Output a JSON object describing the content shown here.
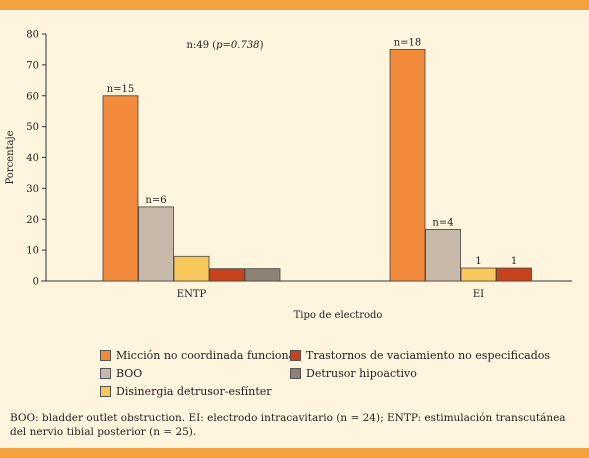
{
  "chart_data": {
    "type": "bar",
    "categories": [
      "ENTP",
      "EI"
    ],
    "series": [
      {
        "name": "Micción no coordinada funcional",
        "color": "#f28a3c",
        "values": [
          60,
          75
        ],
        "labels": [
          "n=15",
          "n=18"
        ]
      },
      {
        "name": "BOO",
        "color": "#c6b9aa",
        "values": [
          24,
          16.7
        ],
        "labels": [
          "n=6",
          "n=4"
        ]
      },
      {
        "name": "Disinergia detrusor-esfínter",
        "color": "#f8c85c",
        "values": [
          8,
          4.2
        ],
        "labels": [
          "",
          "1"
        ]
      },
      {
        "name": "Trastornos de vaciamiento no especificados",
        "color": "#c8421c",
        "values": [
          4,
          4.2
        ],
        "labels": [
          "",
          "1"
        ]
      },
      {
        "name": "Detrusor hipoactivo",
        "color": "#8e8274",
        "values": [
          4,
          0
        ],
        "labels": [
          "",
          ""
        ]
      }
    ],
    "ylabel": "Porcentaje",
    "xlabel": "Tipo de electrodo",
    "ylim": [
      0,
      80
    ],
    "yticks": [
      0,
      10,
      20,
      30,
      40,
      50,
      60,
      70,
      80
    ],
    "annotation_prefix": "n:49 (",
    "annotation_p": "p=0.738",
    "annotation_suffix": ")",
    "grid": false,
    "legend_placement": "bottom"
  },
  "legend": {
    "items": [
      {
        "label": "Micción no coordinada funcional",
        "color": "#f28a3c"
      },
      {
        "label": "Trastornos de vaciamiento no especificados",
        "color": "#c8421c"
      },
      {
        "label": "BOO",
        "color": "#c6b9aa"
      },
      {
        "label": "Detrusor hipoactivo",
        "color": "#8e8274"
      },
      {
        "label": "Disinergia detrusor-esfínter",
        "color": "#f8c85c"
      }
    ]
  },
  "footnote": {
    "line1": "BOO: bladder outlet obstruction. EI: electrodo intracavitario (n = 24); ENTP: estimulación transcutánea",
    "line2": "del nervio tibial posterior (n = 25)."
  }
}
